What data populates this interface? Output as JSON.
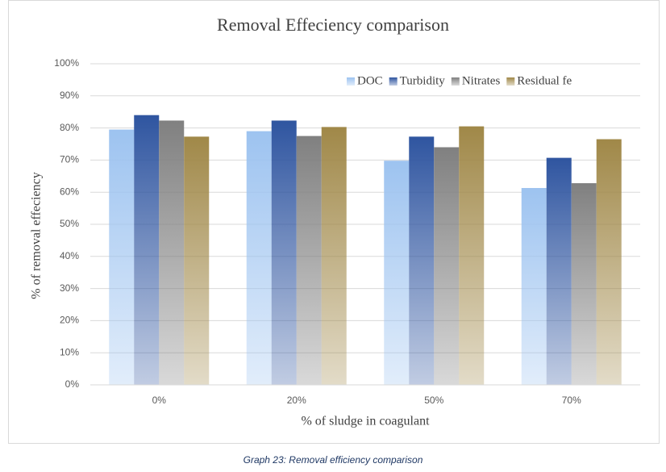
{
  "chart_data": {
    "type": "bar",
    "title": "Removal Effeciency comparison",
    "x_label": "% of sludge in coagulant",
    "y_label": "% of removal effeciency",
    "caption": "Graph 23: Removal efficiency comparison",
    "categories": [
      "0%",
      "20%",
      "50%",
      "70%"
    ],
    "series": [
      {
        "name": "DOC",
        "color": "#9dc3f0",
        "values": [
          79.5,
          79,
          69.8,
          61.3
        ]
      },
      {
        "name": "Turbidity",
        "color": "#2f55a0",
        "values": [
          84,
          82.3,
          77.3,
          70.7
        ]
      },
      {
        "name": "Nitrates",
        "color": "#808080",
        "values": [
          82.3,
          77.5,
          74,
          62.8
        ]
      },
      {
        "name": "Residual fe",
        "color": "#a08848",
        "values": [
          77.3,
          80.3,
          80.5,
          76.5
        ]
      }
    ],
    "ylim": [
      0,
      100
    ],
    "yticks": [
      {
        "value": 0,
        "label": "0%"
      },
      {
        "value": 10,
        "label": "10%"
      },
      {
        "value": 20,
        "label": "20%"
      },
      {
        "value": 30,
        "label": "30%"
      },
      {
        "value": 40,
        "label": "40%"
      },
      {
        "value": 50,
        "label": "50%"
      },
      {
        "value": 60,
        "label": "60%"
      },
      {
        "value": 70,
        "label": "70%"
      },
      {
        "value": 80,
        "label": "80%"
      },
      {
        "value": 90,
        "label": "90%"
      },
      {
        "value": 100,
        "label": "100%"
      }
    ],
    "grid": true,
    "legend": "top-right"
  }
}
